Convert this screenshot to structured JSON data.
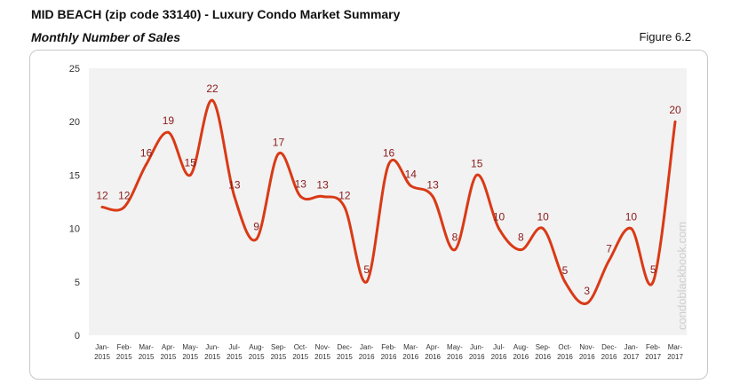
{
  "header": {
    "title": "MID BEACH (zip code 33140) - Luxury Condo Market Summary",
    "subtitle": "Monthly Number of Sales",
    "figure_label": "Figure 6.2"
  },
  "watermark": "condoblackbook.com",
  "colors": {
    "line": "#d93a16",
    "label": "#8b1a1a",
    "plot_bg": "#f2f2f2",
    "axis_text": "#333333"
  },
  "chart_data": {
    "type": "line",
    "title": "Monthly Number of Sales",
    "ylim": [
      0,
      25
    ],
    "yticks": [
      0,
      5,
      10,
      15,
      20,
      25
    ],
    "grid": false,
    "categories": [
      [
        "Jan-",
        "2015"
      ],
      [
        "Feb-",
        "2015"
      ],
      [
        "Mar-",
        "2015"
      ],
      [
        "Apr-",
        "2015"
      ],
      [
        "May-",
        "2015"
      ],
      [
        "Jun-",
        "2015"
      ],
      [
        "Jul-",
        "2015"
      ],
      [
        "Aug-",
        "2015"
      ],
      [
        "Sep-",
        "2015"
      ],
      [
        "Oct-",
        "2015"
      ],
      [
        "Nov-",
        "2015"
      ],
      [
        "Dec-",
        "2015"
      ],
      [
        "Jan-",
        "2016"
      ],
      [
        "Feb-",
        "2016"
      ],
      [
        "Mar-",
        "2016"
      ],
      [
        "Apr-",
        "2016"
      ],
      [
        "May-",
        "2016"
      ],
      [
        "Jun-",
        "2016"
      ],
      [
        "Jul-",
        "2016"
      ],
      [
        "Aug-",
        "2016"
      ],
      [
        "Sep-",
        "2016"
      ],
      [
        "Oct-",
        "2016"
      ],
      [
        "Nov-",
        "2016"
      ],
      [
        "Dec-",
        "2016"
      ],
      [
        "Jan-",
        "2017"
      ],
      [
        "Feb-",
        "2017"
      ],
      [
        "Mar-",
        "2017"
      ]
    ],
    "series": [
      {
        "values": [
          12,
          12,
          16,
          19,
          15,
          22,
          13,
          9,
          17,
          13,
          13,
          12,
          5,
          16,
          14,
          13,
          8,
          15,
          10,
          8,
          10,
          5,
          3,
          7,
          10,
          5,
          20
        ]
      }
    ]
  }
}
